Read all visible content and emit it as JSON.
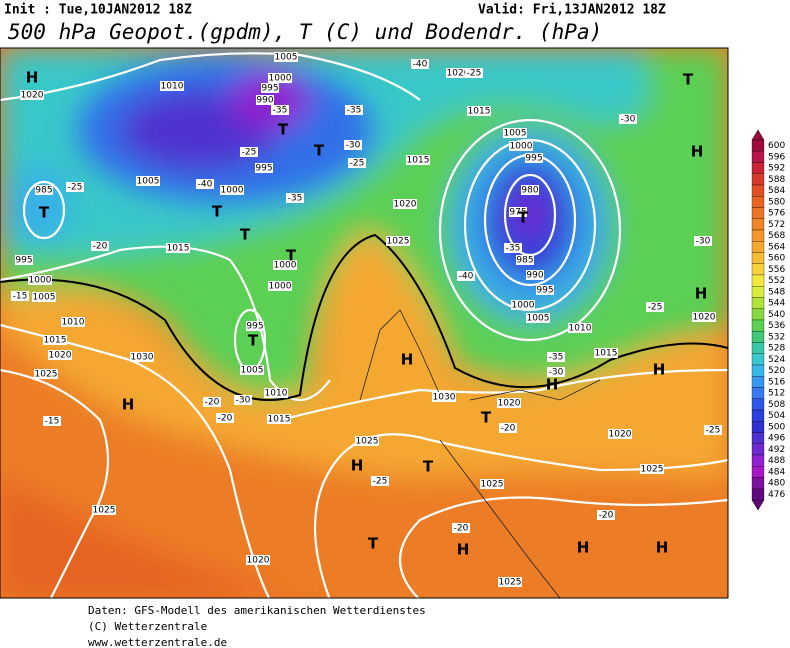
{
  "header": {
    "init": "Init : Tue,10JAN2012 18Z",
    "valid": "Valid: Fri,13JAN2012 18Z",
    "title": "500 hPa Geopot.(gpdm), T (C) und Bodendr. (hPa)"
  },
  "colorbar": {
    "labels": [
      600,
      596,
      592,
      588,
      584,
      580,
      576,
      572,
      568,
      564,
      560,
      556,
      552,
      548,
      544,
      540,
      536,
      532,
      528,
      524,
      520,
      516,
      512,
      508,
      504,
      500,
      496,
      492,
      488,
      484,
      480,
      476
    ],
    "colors": [
      "#9e0a3c",
      "#b8154a",
      "#cc2238",
      "#d83a2a",
      "#e05020",
      "#e86420",
      "#ec7424",
      "#f08428",
      "#f4962c",
      "#f6a830",
      "#f8bc34",
      "#f8d038",
      "#f4e840",
      "#d8ee3c",
      "#b0e43c",
      "#84d840",
      "#5cd050",
      "#40c878",
      "#38c8a8",
      "#38c8d0",
      "#38b8e8",
      "#3898f0",
      "#3878f0",
      "#3058e8",
      "#2c40e0",
      "#3030d0",
      "#5030d0",
      "#7028d0",
      "#9020d0",
      "#a818c8",
      "#8010a0",
      "#600880"
    ]
  },
  "map_labels": {
    "pressure_centers": [
      "H",
      "H",
      "H",
      "H",
      "H",
      "H",
      "H",
      "H",
      "H",
      "H",
      "H",
      "T",
      "T",
      "T",
      "T",
      "T",
      "T",
      "T",
      "T",
      "T",
      "T",
      "T",
      "T"
    ],
    "isobar_labels": [
      "1020",
      "985",
      "1010",
      "1005",
      "1000",
      "995",
      "1015",
      "995",
      "1000",
      "1005",
      "1010",
      "1015",
      "1020",
      "1025",
      "1030",
      "1025",
      "1020",
      "1025",
      "1025",
      "1025",
      "1030",
      "1020",
      "1020",
      "1025",
      "1015",
      "1010",
      "1005",
      "1000",
      "995",
      "990",
      "985",
      "980",
      "975",
      "995",
      "1000",
      "1005",
      "1015",
      "1020",
      "1025",
      "1000",
      "1000",
      "995",
      "1005",
      "1010",
      "1015",
      "1020",
      "1015",
      "1020",
      "1000",
      "990",
      "995",
      "1005"
    ],
    "temperature_labels": [
      "-40",
      "-25",
      "-35",
      "-35",
      "-30",
      "-25",
      "-25",
      "-40",
      "-35",
      "-25",
      "-20",
      "-15",
      "-15",
      "-20",
      "-30",
      "-20",
      "-35",
      "-40",
      "-35",
      "-30",
      "-20",
      "-25",
      "-25",
      "-30",
      "-30",
      "-25",
      "-20",
      "-20"
    ]
  },
  "footer": [
    "Daten: GFS-Modell des amerikanischen Wetterdienstes",
    "(C) Wetterzentrale",
    "www.wetterzentrale.de"
  ]
}
